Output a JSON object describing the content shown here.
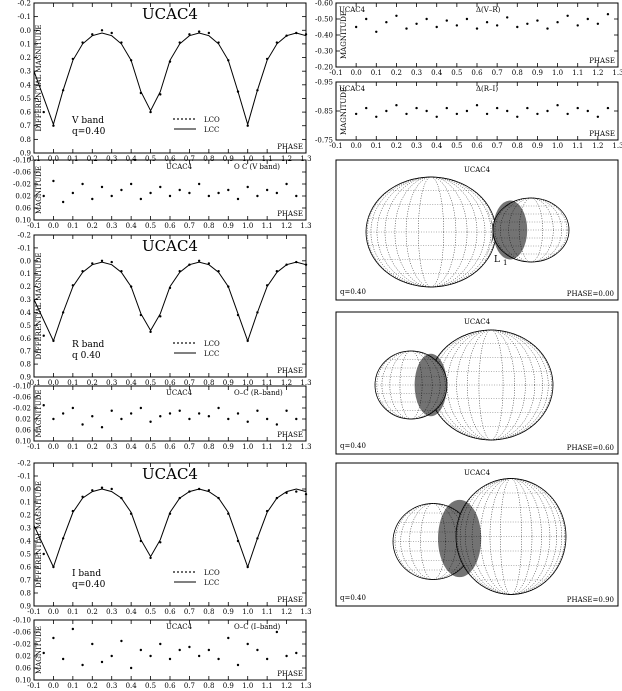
{
  "phase_ticks": [
    "-0.1",
    "0.0",
    "0.1",
    "0.2",
    "0.3",
    "0.4",
    "0.5",
    "0.6",
    "0.7",
    "0.8",
    "0.9",
    "1.0",
    "1.1",
    "1.2",
    "1.3"
  ],
  "chart_data": [
    {
      "id": "lc_v",
      "type": "scatter",
      "title": "UCAC4",
      "xlabel": "PHASE",
      "ylabel": "DIFFERENTIAL MAGNITUDE",
      "xlim": [
        -0.1,
        1.3
      ],
      "ylim": [
        -0.2,
        0.9
      ],
      "y_inverted": true,
      "yticks": [
        "-0.2",
        "-0.1",
        "0.0",
        "0.1",
        "0.2",
        "0.3",
        "0.4",
        "0.5",
        "0.6",
        "0.7",
        "0.8",
        "0.9"
      ],
      "band_label": "V  band",
      "q_label": "q=0.40",
      "legend": [
        {
          "symbol": "dots",
          "name": "LCO"
        },
        {
          "symbol": "line",
          "name": "LCC"
        }
      ],
      "series": [
        {
          "name": "LCO",
          "style": "points",
          "x": [
            -0.05,
            0.0,
            0.05,
            0.1,
            0.15,
            0.2,
            0.25,
            0.3,
            0.35,
            0.4,
            0.45,
            0.5,
            0.55,
            0.6,
            0.65,
            0.7,
            0.75,
            0.8,
            0.85,
            0.9,
            0.95,
            1.0,
            1.05,
            1.1,
            1.15,
            1.2,
            1.25,
            1.3
          ],
          "y": [
            0.6,
            0.7,
            0.44,
            0.21,
            0.09,
            0.03,
            0.0,
            0.02,
            0.09,
            0.22,
            0.46,
            0.6,
            0.47,
            0.23,
            0.09,
            0.03,
            0.01,
            0.02,
            0.09,
            0.22,
            0.45,
            0.7,
            0.44,
            0.21,
            0.09,
            0.04,
            0.02,
            0.03
          ]
        },
        {
          "name": "LCC",
          "style": "line",
          "x": [
            -0.1,
            0.0,
            0.05,
            0.1,
            0.15,
            0.2,
            0.25,
            0.3,
            0.35,
            0.4,
            0.45,
            0.5,
            0.55,
            0.6,
            0.65,
            0.7,
            0.75,
            0.8,
            0.85,
            0.9,
            0.95,
            1.0,
            1.05,
            1.1,
            1.15,
            1.2,
            1.25,
            1.3
          ],
          "y": [
            0.3,
            0.69,
            0.44,
            0.22,
            0.1,
            0.04,
            0.02,
            0.04,
            0.1,
            0.22,
            0.45,
            0.59,
            0.45,
            0.22,
            0.1,
            0.04,
            0.02,
            0.04,
            0.1,
            0.22,
            0.45,
            0.69,
            0.44,
            0.22,
            0.1,
            0.04,
            0.02,
            0.04
          ]
        }
      ]
    },
    {
      "id": "oc_v",
      "type": "scatter",
      "title": "UCAC4",
      "annotation": "O  C  (V  band)",
      "xlabel": "PHASE",
      "ylabel": "MAGNITUDE",
      "xlim": [
        -0.1,
        1.3
      ],
      "ylim": [
        -0.1,
        0.1
      ],
      "y_inverted": true,
      "yticks": [
        "-0.10",
        "-0.06",
        "-0.02",
        "0.02",
        "0.06",
        "0.10"
      ],
      "series": [
        {
          "name": "O-C",
          "x": [
            -0.05,
            0.0,
            0.05,
            0.1,
            0.15,
            0.2,
            0.25,
            0.3,
            0.35,
            0.4,
            0.45,
            0.5,
            0.55,
            0.6,
            0.65,
            0.7,
            0.75,
            0.8,
            0.85,
            0.9,
            0.95,
            1.0,
            1.05,
            1.1,
            1.15,
            1.2,
            1.25
          ],
          "y": [
            0.02,
            -0.03,
            0.04,
            0.01,
            -0.02,
            0.03,
            -0.01,
            0.02,
            0.0,
            -0.02,
            0.03,
            0.01,
            -0.01,
            0.02,
            0.0,
            0.01,
            -0.02,
            0.02,
            0.01,
            0.0,
            0.03,
            -0.01,
            0.02,
            0.0,
            0.01,
            -0.02,
            0.02
          ]
        }
      ]
    },
    {
      "id": "lc_r",
      "type": "scatter",
      "title": "UCAC4",
      "xlabel": "PHASE",
      "ylabel": "DIFFERENTIAL MAGNITUDE",
      "xlim": [
        -0.1,
        1.3
      ],
      "ylim": [
        -0.2,
        0.9
      ],
      "y_inverted": true,
      "yticks": [
        "-0.2",
        "-0.1",
        "0.0",
        "0.1",
        "0.2",
        "0.3",
        "0.4",
        "0.5",
        "0.6",
        "0.7",
        "0.8",
        "0.9"
      ],
      "band_label": "R  band",
      "q_label": "q  0.40",
      "legend": [
        {
          "symbol": "dots",
          "name": "LCO"
        },
        {
          "symbol": "line",
          "name": "LCC"
        }
      ],
      "series": [
        {
          "name": "LCO",
          "style": "points",
          "x": [
            -0.05,
            0.0,
            0.05,
            0.1,
            0.15,
            0.2,
            0.25,
            0.3,
            0.35,
            0.4,
            0.45,
            0.5,
            0.55,
            0.6,
            0.65,
            0.7,
            0.75,
            0.8,
            0.85,
            0.9,
            0.95,
            1.0,
            1.05,
            1.1,
            1.15,
            1.2,
            1.25,
            1.3
          ],
          "y": [
            0.58,
            0.62,
            0.4,
            0.19,
            0.08,
            0.02,
            0.0,
            0.01,
            0.08,
            0.2,
            0.42,
            0.55,
            0.43,
            0.21,
            0.08,
            0.03,
            0.0,
            0.02,
            0.08,
            0.2,
            0.42,
            0.62,
            0.4,
            0.19,
            0.08,
            0.03,
            0.01,
            0.03
          ]
        },
        {
          "name": "LCC",
          "style": "line",
          "x": [
            -0.1,
            0.0,
            0.05,
            0.1,
            0.15,
            0.2,
            0.25,
            0.3,
            0.35,
            0.4,
            0.45,
            0.5,
            0.55,
            0.6,
            0.65,
            0.7,
            0.75,
            0.8,
            0.85,
            0.9,
            0.95,
            1.0,
            1.05,
            1.1,
            1.15,
            1.2,
            1.25,
            1.3
          ],
          "y": [
            0.3,
            0.62,
            0.4,
            0.2,
            0.09,
            0.03,
            0.01,
            0.03,
            0.09,
            0.2,
            0.41,
            0.54,
            0.41,
            0.2,
            0.09,
            0.03,
            0.01,
            0.03,
            0.09,
            0.2,
            0.41,
            0.62,
            0.4,
            0.2,
            0.09,
            0.03,
            0.01,
            0.03
          ]
        }
      ]
    },
    {
      "id": "oc_r",
      "type": "scatter",
      "title": "UCAC4",
      "annotation": "O–C  (R–band)",
      "xlabel": "PHASE",
      "ylabel": "MAGNITUDE",
      "xlim": [
        -0.1,
        1.3
      ],
      "ylim": [
        -0.1,
        0.1
      ],
      "y_inverted": true,
      "yticks": [
        "-0.10",
        "-0.06",
        "-0.02",
        "0.02",
        "0.06",
        "0.10"
      ],
      "series": [
        {
          "name": "O-C",
          "x": [
            -0.05,
            0.0,
            0.05,
            0.1,
            0.15,
            0.2,
            0.25,
            0.3,
            0.35,
            0.4,
            0.45,
            0.5,
            0.55,
            0.6,
            0.65,
            0.7,
            0.75,
            0.8,
            0.85,
            0.9,
            0.95,
            1.0,
            1.05,
            1.1,
            1.15,
            1.2,
            1.25
          ],
          "y": [
            -0.03,
            0.02,
            0.0,
            -0.02,
            0.04,
            0.01,
            0.05,
            -0.01,
            0.02,
            0.0,
            -0.02,
            0.03,
            0.01,
            0.0,
            -0.01,
            0.02,
            0.0,
            0.01,
            -0.02,
            0.02,
            0.0,
            0.03,
            -0.01,
            0.02,
            0.04,
            -0.01,
            0.02
          ]
        }
      ]
    },
    {
      "id": "lc_i",
      "type": "scatter",
      "title": "UCAC4",
      "xlabel": "PHASE",
      "ylabel": "DIFFERENTIAL MAGNITUDE",
      "xlim": [
        -0.1,
        1.3
      ],
      "ylim": [
        -0.2,
        0.9
      ],
      "y_inverted": true,
      "yticks": [
        "-0.2",
        "-0.1",
        "0.0",
        "0.1",
        "0.2",
        "0.3",
        "0.4",
        "0.5",
        "0.6",
        "0.7",
        "0.8",
        "0.9"
      ],
      "band_label": "I  band",
      "q_label": "q=0.40",
      "legend": [
        {
          "symbol": "dots",
          "name": "LCO"
        },
        {
          "symbol": "line",
          "name": "LCC"
        }
      ],
      "series": [
        {
          "name": "LCO",
          "style": "points",
          "x": [
            -0.05,
            0.0,
            0.05,
            0.1,
            0.15,
            0.2,
            0.25,
            0.3,
            0.35,
            0.4,
            0.45,
            0.5,
            0.55,
            0.6,
            0.65,
            0.7,
            0.75,
            0.8,
            0.85,
            0.9,
            0.95,
            1.0,
            1.05,
            1.1,
            1.15,
            1.2,
            1.25,
            1.3
          ],
          "y": [
            0.5,
            0.6,
            0.38,
            0.17,
            0.06,
            0.01,
            -0.01,
            0.0,
            0.07,
            0.19,
            0.4,
            0.53,
            0.41,
            0.19,
            0.07,
            0.02,
            0.0,
            0.01,
            0.07,
            0.19,
            0.4,
            0.6,
            0.38,
            0.17,
            0.07,
            0.03,
            0.02,
            0.04
          ]
        },
        {
          "name": "LCC",
          "style": "line",
          "x": [
            -0.1,
            0.0,
            0.05,
            0.1,
            0.15,
            0.2,
            0.25,
            0.3,
            0.35,
            0.4,
            0.45,
            0.5,
            0.55,
            0.6,
            0.65,
            0.7,
            0.75,
            0.8,
            0.85,
            0.9,
            0.95,
            1.0,
            1.05,
            1.1,
            1.15,
            1.2,
            1.25,
            1.3
          ],
          "y": [
            0.28,
            0.6,
            0.38,
            0.18,
            0.07,
            0.02,
            0.0,
            0.02,
            0.07,
            0.18,
            0.39,
            0.52,
            0.39,
            0.18,
            0.07,
            0.02,
            0.0,
            0.02,
            0.07,
            0.18,
            0.39,
            0.6,
            0.38,
            0.18,
            0.07,
            0.02,
            0.0,
            0.02
          ]
        }
      ]
    },
    {
      "id": "oc_i",
      "type": "scatter",
      "title": "UCAC4",
      "annotation": "O–C  (I–band)",
      "xlabel": "PHASE",
      "ylabel": "MAGNITUDE",
      "xlim": [
        -0.1,
        1.3
      ],
      "ylim": [
        -0.1,
        0.1
      ],
      "y_inverted": true,
      "yticks": [
        "-0.10",
        "-0.06",
        "-0.02",
        "0.02",
        "0.06",
        "0.10"
      ],
      "series": [
        {
          "name": "O-C",
          "x": [
            -0.05,
            0.0,
            0.05,
            0.1,
            0.15,
            0.2,
            0.25,
            0.3,
            0.35,
            0.4,
            0.45,
            0.5,
            0.55,
            0.6,
            0.65,
            0.7,
            0.75,
            0.8,
            0.85,
            0.9,
            0.95,
            1.0,
            1.05,
            1.1,
            1.15,
            1.2,
            1.25
          ],
          "y": [
            0.01,
            -0.04,
            0.03,
            -0.07,
            0.05,
            -0.02,
            0.04,
            0.02,
            -0.03,
            0.06,
            0.0,
            0.02,
            -0.02,
            0.03,
            0.0,
            -0.01,
            0.02,
            0.0,
            0.03,
            -0.04,
            0.05,
            -0.02,
            0.0,
            0.03,
            -0.06,
            0.02,
            0.01
          ]
        }
      ]
    },
    {
      "id": "color_vr",
      "type": "scatter",
      "title": "UCAC4",
      "annotation": "Δ(V–R)",
      "xlabel": "PHASE",
      "ylabel": "MAGNITUDE",
      "xlim": [
        -0.1,
        1.3
      ],
      "ylim": [
        -0.6,
        -0.2
      ],
      "y_inverted": true,
      "yticks": [
        "-0.60",
        "-0.50",
        "-0.40",
        "-0.30",
        "-0.20"
      ],
      "series": [
        {
          "name": "Δ(V-R)",
          "x": [
            0.0,
            0.05,
            0.1,
            0.15,
            0.2,
            0.25,
            0.3,
            0.35,
            0.4,
            0.45,
            0.5,
            0.55,
            0.6,
            0.65,
            0.7,
            0.75,
            0.8,
            0.85,
            0.9,
            0.95,
            1.0,
            1.05,
            1.1,
            1.15,
            1.2,
            1.25
          ],
          "y": [
            -0.45,
            -0.5,
            -0.42,
            -0.48,
            -0.52,
            -0.44,
            -0.47,
            -0.5,
            -0.45,
            -0.49,
            -0.46,
            -0.5,
            -0.44,
            -0.48,
            -0.46,
            -0.51,
            -0.45,
            -0.47,
            -0.49,
            -0.44,
            -0.48,
            -0.52,
            -0.46,
            -0.5,
            -0.47,
            -0.53
          ]
        }
      ]
    },
    {
      "id": "color_ri",
      "type": "scatter",
      "title": "UCAC4",
      "annotation": "Δ(R–I)",
      "xlabel": "PHASE",
      "ylabel": "MAGNITUDE",
      "xlim": [
        -0.1,
        1.3
      ],
      "ylim": [
        -0.95,
        -0.75
      ],
      "y_inverted": true,
      "yticks": [
        "-0.95",
        "-0.85",
        "-0.75"
      ],
      "series": [
        {
          "name": "Δ(R-I)",
          "x": [
            0.0,
            0.05,
            0.1,
            0.15,
            0.2,
            0.25,
            0.3,
            0.35,
            0.4,
            0.45,
            0.5,
            0.55,
            0.6,
            0.65,
            0.7,
            0.75,
            0.8,
            0.85,
            0.9,
            0.95,
            1.0,
            1.05,
            1.1,
            1.15,
            1.2,
            1.25
          ],
          "y": [
            -0.84,
            -0.86,
            -0.83,
            -0.85,
            -0.87,
            -0.84,
            -0.86,
            -0.85,
            -0.83,
            -0.86,
            -0.84,
            -0.85,
            -0.87,
            -0.84,
            -0.86,
            -0.85,
            -0.83,
            -0.86,
            -0.84,
            -0.85,
            -0.87,
            -0.84,
            -0.86,
            -0.85,
            -0.83,
            -0.86
          ]
        }
      ]
    }
  ],
  "models": [
    {
      "title": "UCAC4",
      "q_label": "q=0.40",
      "phase_label": "PHASE=0.00",
      "l1_label": "L",
      "l1_sub": "1",
      "phase": 0.0
    },
    {
      "title": "UCAC4",
      "q_label": "q=0.40",
      "phase_label": "PHASE=0.60",
      "phase": 0.6
    },
    {
      "title": "UCAC4",
      "q_label": "q=0.40",
      "phase_label": "PHASE=0.90",
      "phase": 0.9
    }
  ]
}
